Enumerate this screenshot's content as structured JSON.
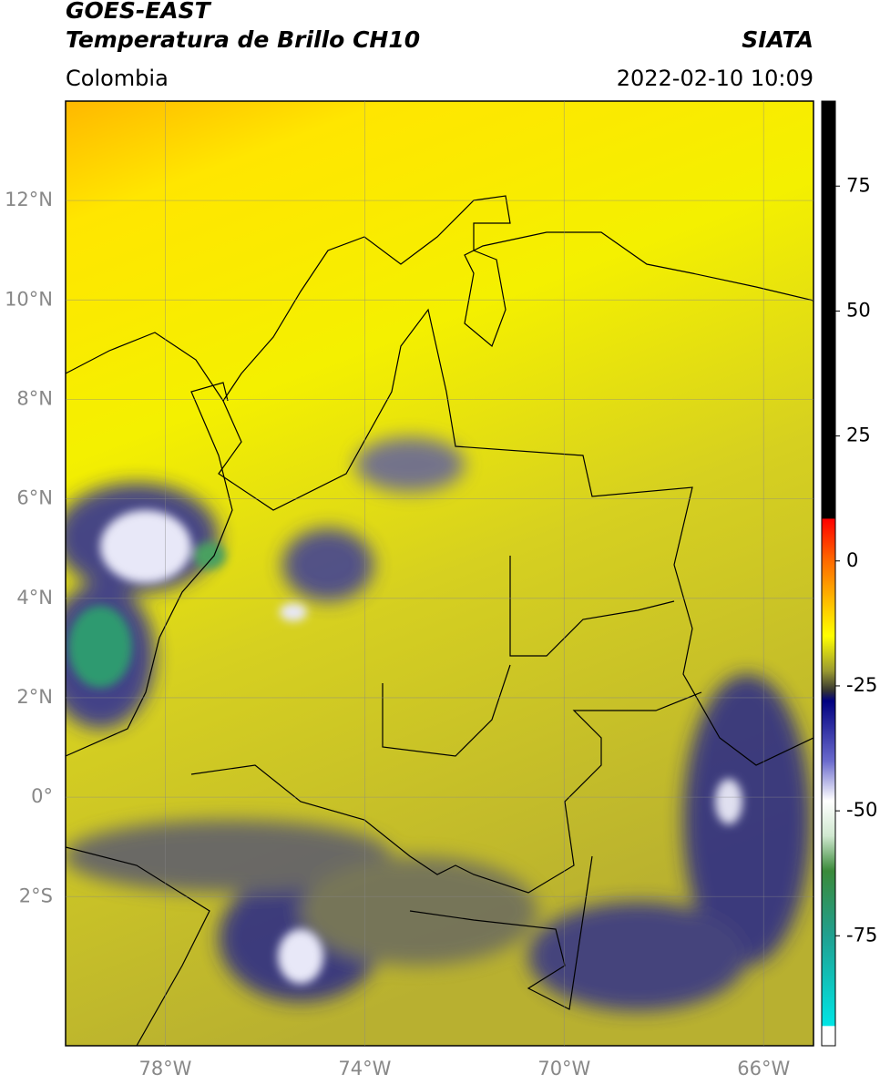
{
  "header": {
    "title": "GOES-EAST",
    "subtitle": "Temperatura de Brillo CH10",
    "source": "SIATA",
    "region": "Colombia",
    "datetime": "2022-02-10 10:09"
  },
  "map": {
    "lonlim": [
      -80,
      -65
    ],
    "latlim": [
      -5,
      14
    ],
    "lonticks": [
      {
        "value": -78,
        "label": "78°W"
      },
      {
        "value": -74,
        "label": "74°W"
      },
      {
        "value": -70,
        "label": "70°W"
      },
      {
        "value": -66,
        "label": "66°W"
      }
    ],
    "latticks": [
      {
        "value": 12,
        "label": "12°N"
      },
      {
        "value": 10,
        "label": "10°N"
      },
      {
        "value": 8,
        "label": "8°N"
      },
      {
        "value": 6,
        "label": "6°N"
      },
      {
        "value": 4,
        "label": "4°N"
      },
      {
        "value": 2,
        "label": "2°N"
      },
      {
        "value": 0,
        "label": "0°"
      },
      {
        "value": -2,
        "label": "2°S"
      }
    ],
    "grid": true
  },
  "colorbar": {
    "lim": [
      -97,
      92
    ],
    "ticks": [
      75,
      50,
      25,
      0,
      -25,
      -50,
      -75
    ],
    "stops": [
      {
        "value": 92,
        "color": "#000000"
      },
      {
        "value": 8.5,
        "color": "#000000"
      },
      {
        "value": 8.4,
        "color": "#ff0000"
      },
      {
        "value": 0,
        "color": "#ff6a00"
      },
      {
        "value": -10,
        "color": "#ffd000"
      },
      {
        "value": -15,
        "color": "#ffff00"
      },
      {
        "value": -22,
        "color": "#9a9a30"
      },
      {
        "value": -26,
        "color": "#333333"
      },
      {
        "value": -28,
        "color": "#000080"
      },
      {
        "value": -40,
        "color": "#6a6acc"
      },
      {
        "value": -48,
        "color": "#ffffff"
      },
      {
        "value": -55,
        "color": "#d0e8d0"
      },
      {
        "value": -62,
        "color": "#3a8a3a"
      },
      {
        "value": -75,
        "color": "#20a090"
      },
      {
        "value": -93,
        "color": "#00e5e5"
      },
      {
        "value": -93.1,
        "color": "#ffffff"
      },
      {
        "value": -97,
        "color": "#ffffff"
      }
    ]
  }
}
